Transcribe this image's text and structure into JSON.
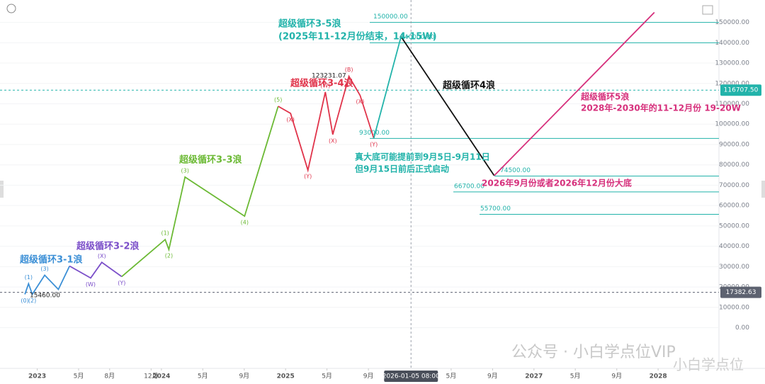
{
  "chart_data": {
    "type": "line",
    "xlim": [
      2022.7,
      2028.49
    ],
    "ylim": [
      -20000,
      161000
    ],
    "xticks": [
      {
        "value": 2023,
        "label": "2023"
      },
      {
        "value": 2023.333,
        "label": "5月"
      },
      {
        "value": 2023.583,
        "label": "8月"
      },
      {
        "value": 2023.917,
        "label": "12月"
      },
      {
        "value": 2024,
        "label": "2024"
      },
      {
        "value": 2024.333,
        "label": "5月"
      },
      {
        "value": 2024.667,
        "label": "9月"
      },
      {
        "value": 2025,
        "label": "2025"
      },
      {
        "value": 2025.333,
        "label": "5月"
      },
      {
        "value": 2025.667,
        "label": "9月"
      },
      {
        "value": 2026.333,
        "label": "5月"
      },
      {
        "value": 2026.667,
        "label": "9月"
      },
      {
        "value": 2027,
        "label": "2027"
      },
      {
        "value": 2027.333,
        "label": "5月"
      },
      {
        "value": 2027.667,
        "label": "9月"
      },
      {
        "value": 2028,
        "label": "2028"
      }
    ],
    "yticks": [
      {
        "value": 0,
        "label": "0.00"
      },
      {
        "value": 10000,
        "label": "10000.00"
      },
      {
        "value": 20000,
        "label": "20000.00"
      },
      {
        "value": 30000,
        "label": "30000.00"
      },
      {
        "value": 40000,
        "label": "40000.00"
      },
      {
        "value": 50000,
        "label": "50000.00"
      },
      {
        "value": 60000,
        "label": "60000.00"
      },
      {
        "value": 70000,
        "label": "70000.00"
      },
      {
        "value": 80000,
        "label": "80000.00"
      },
      {
        "value": 90000,
        "label": "90000.00"
      },
      {
        "value": 100000,
        "label": "100000.00"
      },
      {
        "value": 110000,
        "label": "110000.00"
      },
      {
        "value": 120000,
        "label": "120000.00"
      },
      {
        "value": 130000,
        "label": "130000.00"
      },
      {
        "value": 140000,
        "label": "140000.00"
      },
      {
        "value": 150000,
        "label": "150000.00"
      }
    ],
    "series": [
      {
        "color": "#3b8fd6",
        "x": [
          2022.9,
          2022.93,
          2022.96,
          2023.06,
          2023.17,
          2023.26
        ],
        "values": [
          16400,
          21600,
          16400,
          25800,
          18800,
          30300
        ],
        "point_labels": [
          "(0)",
          "(1)",
          "(2)",
          "(3)",
          null,
          null
        ]
      },
      {
        "color": "#7b4fc9",
        "x": [
          2023.26,
          2023.43,
          2023.52,
          2023.68
        ],
        "values": [
          30300,
          24400,
          32100,
          25100
        ],
        "point_labels": [
          null,
          "(W)",
          "(X)",
          "(Y)"
        ]
      },
      {
        "color": "#6bb934",
        "x": [
          2023.68,
          2024.03,
          2024.06,
          2024.19,
          2024.67,
          2024.94
        ],
        "values": [
          25100,
          43300,
          38400,
          74000,
          54800,
          108800
        ],
        "point_labels": [
          null,
          "(1)",
          "(2)",
          "(3)",
          "(4)",
          "(5)"
        ]
      },
      {
        "color": "#e0334a",
        "x": [
          2024.94,
          2025.04,
          2025.18,
          2025.32,
          2025.38,
          2025.51,
          2025.6,
          2025.71
        ],
        "values": [
          108800,
          105300,
          77400,
          115800,
          94900,
          123500,
          114100,
          93100
        ],
        "point_labels": [
          null,
          "(X)",
          "(Y)",
          "(W)",
          "(X)",
          "(B)",
          "(X)",
          "(Y)"
        ]
      },
      {
        "color": "#22b3aa",
        "x": [
          2025.71,
          2025.93
        ],
        "values": [
          93100,
          143000
        ]
      },
      {
        "color": "#111111",
        "x": [
          2025.93,
          2026.68
        ],
        "values": [
          143000,
          74700
        ]
      },
      {
        "color": "#d6307c",
        "x": [
          2026.68,
          2027.97
        ],
        "values": [
          74700,
          154900
        ]
      }
    ],
    "levels": [
      {
        "value": 150000,
        "label": "150000.00"
      },
      {
        "value": 140000,
        "label": "140000.00"
      },
      {
        "value": 93000,
        "label": "93000.00"
      },
      {
        "value": 74500,
        "label": "74500.00"
      },
      {
        "value": 66700,
        "label": "66700.00"
      },
      {
        "value": 55700,
        "label": "55700.00"
      }
    ],
    "level_color": "#22b3aa",
    "price_lines": [
      {
        "value": 116707.5,
        "label": "116707.50",
        "color": "#22b3aa"
      },
      {
        "value": 17382.63,
        "label": "17382.63",
        "color": "#5d6270"
      }
    ],
    "crosshair": {
      "x": 2026.01,
      "label": "2026-01-05 08:00"
    },
    "annotations": [
      {
        "text": "超级循环3-5浪",
        "color": "#22b3aa"
      },
      {
        "text": "(2025年11-12月份结束，14-15W)",
        "color": "#22b3aa"
      },
      {
        "text": "超级循环3-4浪",
        "color": "#e0334a"
      },
      {
        "text": "超级循环3-3浪",
        "color": "#6bb934"
      },
      {
        "text": "超级循环3-2浪",
        "color": "#7b4fc9"
      },
      {
        "text": "超级循环3-1浪",
        "color": "#3b8fd6"
      },
      {
        "text": "超级循环4浪",
        "color": "#111111"
      },
      {
        "text": "超级循环5浪",
        "color": "#d6307c"
      },
      {
        "text": "2028年-2030年的11-12月份 19-20W",
        "color": "#d6307c"
      },
      {
        "text": "真大底可能提前到9月5日-9月11日",
        "color": "#22b3aa"
      },
      {
        "text": "但9月15日前后正式启动",
        "color": "#22b3aa"
      },
      {
        "text": "2026年9月份或者2026年12月份大底",
        "color": "#d6307c"
      },
      {
        "text": "123231.07",
        "color": "#222222"
      },
      {
        "text": "15460.00",
        "color": "#222222"
      }
    ],
    "watermark": [
      "公众号 · 小白学点位VIP",
      "小白学点位"
    ]
  }
}
